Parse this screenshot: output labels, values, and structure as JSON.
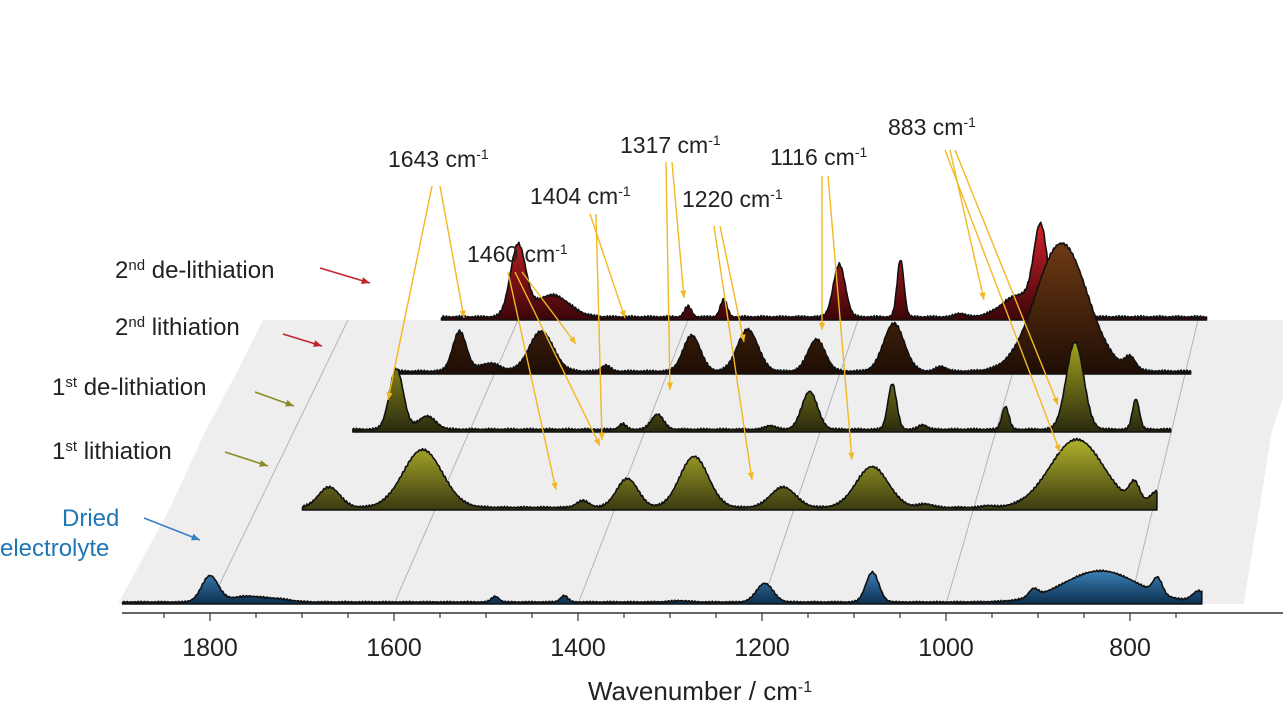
{
  "chart_data": {
    "type": "area",
    "xlabel": "Wavenumber / cm",
    "xlabel_sup": "-1",
    "x_reversed": true,
    "xlim": [
      1900,
      720
    ],
    "xticks": [
      "1800",
      "1600",
      "1400",
      "1200",
      "1000",
      "800"
    ],
    "series": [
      {
        "name": "Dried electrolyte",
        "label_parts": [
          [
            "Dried",
            ""
          ],
          [
            "electrolyte",
            ""
          ]
        ],
        "label_color": "#1f77b4",
        "arrow_color": "#3a7fc1",
        "fill_top": "#3d82b8",
        "fill_bottom": "#0b2e4e",
        "baseline": 0.5,
        "peaks": [
          [
            1800,
            1.0,
            9
          ],
          [
            1760,
            0.22,
            18
          ],
          [
            1725,
            0.1,
            14
          ],
          [
            1490,
            0.22,
            4
          ],
          [
            1415,
            0.25,
            4
          ],
          [
            1290,
            0.05,
            10
          ],
          [
            1197,
            0.72,
            9
          ],
          [
            1080,
            1.15,
            7
          ],
          [
            905,
            0.3,
            5
          ],
          [
            832,
            1.2,
            40
          ],
          [
            770,
            0.6,
            5
          ],
          [
            725,
            0.4,
            7
          ]
        ]
      },
      {
        "name": "1st lithiation",
        "label_parts": [
          [
            "1",
            "st"
          ],
          [
            " lithiation",
            ""
          ]
        ],
        "label_color": "#222222",
        "arrow_color": "#8b8c28",
        "fill_top": "#b3b42a",
        "fill_bottom": "#3a3a12",
        "baseline": 0.5,
        "peaks": [
          [
            1720,
            0.6,
            12
          ],
          [
            1615,
            1.7,
            22
          ],
          [
            1435,
            0.2,
            7
          ],
          [
            1385,
            0.85,
            12
          ],
          [
            1310,
            1.5,
            16
          ],
          [
            1210,
            0.6,
            14
          ],
          [
            1110,
            1.2,
            18
          ],
          [
            1050,
            0.1,
            8
          ],
          [
            980,
            0.05,
            6
          ],
          [
            880,
            2.0,
            30
          ],
          [
            815,
            0.6,
            6
          ],
          [
            790,
            0.45,
            8
          ]
        ]
      },
      {
        "name": "1st de-lithiation",
        "label_parts": [
          [
            "1",
            "st"
          ],
          [
            " de-lithiation",
            ""
          ]
        ],
        "label_color": "#222222",
        "arrow_color": "#8b8c28",
        "fill_top": "#a0a11e",
        "fill_bottom": "#2a2a0e",
        "baseline": 0.45,
        "peaks": [
          [
            1680,
            1.6,
            8
          ],
          [
            1645,
            0.35,
            10
          ],
          [
            1420,
            0.15,
            4
          ],
          [
            1380,
            0.4,
            7
          ],
          [
            1250,
            0.1,
            6
          ],
          [
            1205,
            1.0,
            9
          ],
          [
            1110,
            1.2,
            5
          ],
          [
            1075,
            0.12,
            5
          ],
          [
            980,
            0.6,
            4
          ],
          [
            900,
            2.3,
            10
          ],
          [
            830,
            0.8,
            4
          ]
        ]
      },
      {
        "name": "2nd lithiation",
        "label_parts": [
          [
            "2",
            "nd"
          ],
          [
            " lithiation",
            ""
          ]
        ],
        "label_color": "#222222",
        "arrow_color": "#c4232b",
        "fill_top": "#6e3a14",
        "fill_bottom": "#1e0d04",
        "baseline": 0.45,
        "peaks": [
          [
            1640,
            1.0,
            8
          ],
          [
            1605,
            0.2,
            12
          ],
          [
            1545,
            1.0,
            14
          ],
          [
            1470,
            0.15,
            5
          ],
          [
            1370,
            0.9,
            10
          ],
          [
            1305,
            1.05,
            12
          ],
          [
            1225,
            0.8,
            10
          ],
          [
            1135,
            1.2,
            12
          ],
          [
            1080,
            0.12,
            6
          ],
          [
            940,
            3.2,
            30
          ],
          [
            860,
            0.3,
            6
          ]
        ]
      },
      {
        "name": "2nd de-lithiation",
        "label_parts": [
          [
            "2",
            "nd"
          ],
          [
            " de-lithiation",
            ""
          ]
        ],
        "label_color": "#222222",
        "arrow_color": "#c4232b",
        "fill_top": "#d8242a",
        "fill_bottom": "#3a0508",
        "baseline": 0.45,
        "peaks": [
          [
            1600,
            1.6,
            9
          ],
          [
            1560,
            0.5,
            20
          ],
          [
            1400,
            0.25,
            4
          ],
          [
            1358,
            0.4,
            4
          ],
          [
            1222,
            1.2,
            7
          ],
          [
            1150,
            1.3,
            4
          ],
          [
            1080,
            0.08,
            6
          ],
          [
            985,
            1.9,
            8
          ],
          [
            1010,
            0.5,
            20
          ]
        ]
      }
    ],
    "annotations": [
      {
        "label": "1643 cm",
        "sup": "-1"
      },
      {
        "label": "1460 cm",
        "sup": "-1"
      },
      {
        "label": "1404 cm",
        "sup": "-1"
      },
      {
        "label": "1317 cm",
        "sup": "-1"
      },
      {
        "label": "1220 cm",
        "sup": "-1"
      },
      {
        "label": "1116 cm",
        "sup": "-1"
      },
      {
        "label": "883 cm",
        "sup": "-1"
      }
    ],
    "colors": {
      "axis": "#333333",
      "grid": "#b5b5b5",
      "floor": "#eeeeee",
      "annotation_arrow": "#f2b824"
    }
  }
}
